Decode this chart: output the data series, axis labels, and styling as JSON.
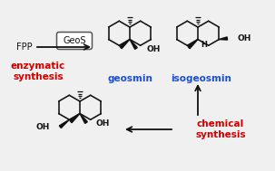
{
  "background_color": "#f0f0f0",
  "border_color": "#aaaaaa",
  "fpp_label": "FPP",
  "geos_label": "GeoS",
  "enzymatic_label": "enzymatic\nsynthesis",
  "chemical_label": "chemical\nsynthesis",
  "geosmin_label": "geosmin",
  "isogeosmin_label": "isogeosmin",
  "label_color_red": "#cc0000",
  "label_color_blue": "#1a4fcc",
  "label_color_black": "#111111",
  "struct_color": "#111111",
  "white": "#ffffff"
}
